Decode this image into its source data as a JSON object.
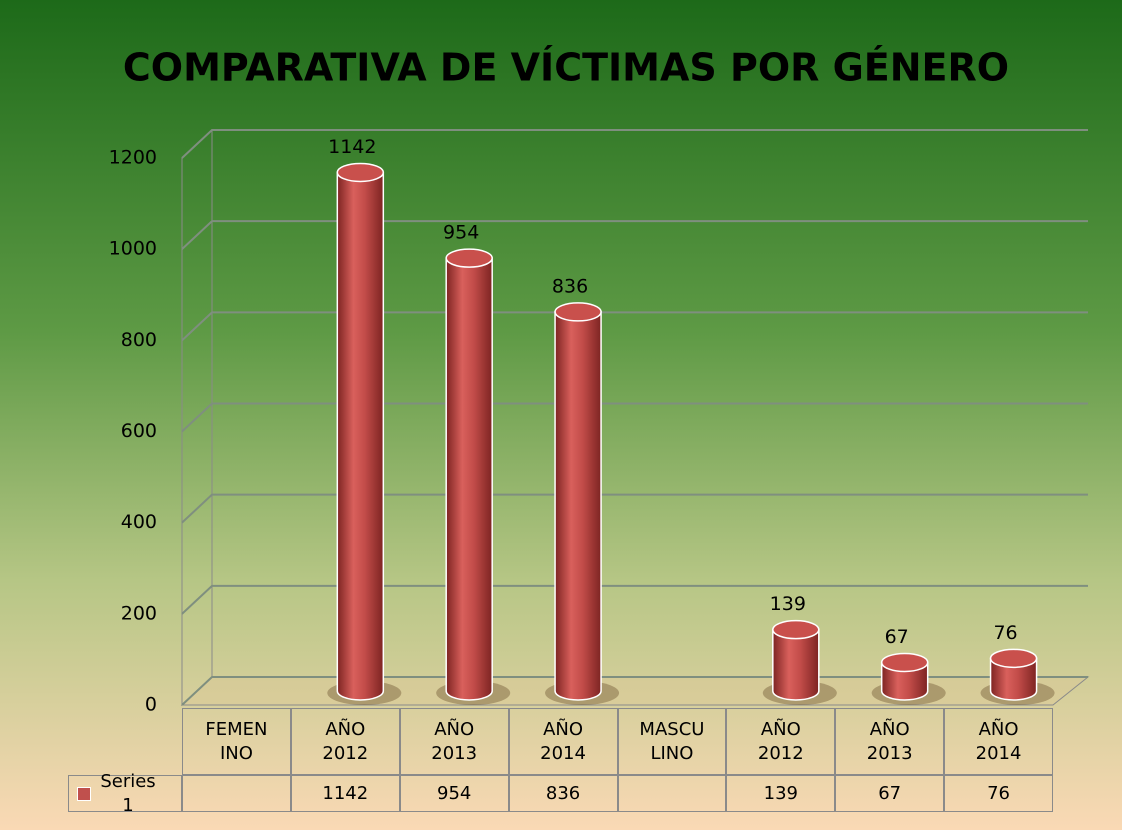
{
  "chart_data": {
    "type": "bar",
    "title": "COMPARATIVA  DE VÍCTIMAS POR GÉNERO",
    "categories": [
      "FEMENINO",
      "AÑO 2012",
      "AÑO 2013",
      "AÑO 2014",
      "MASCULINO",
      "AÑO 2012",
      "AÑO 2013",
      "AÑO 2014"
    ],
    "series": [
      {
        "name": "Series1",
        "color": "#c0504d",
        "values": [
          null,
          1142,
          954,
          836,
          null,
          139,
          67,
          76
        ]
      }
    ],
    "ylim": [
      0,
      1200
    ],
    "yticks": [
      0,
      200,
      400,
      600,
      800,
      1000,
      1200
    ],
    "grid": true
  }
}
